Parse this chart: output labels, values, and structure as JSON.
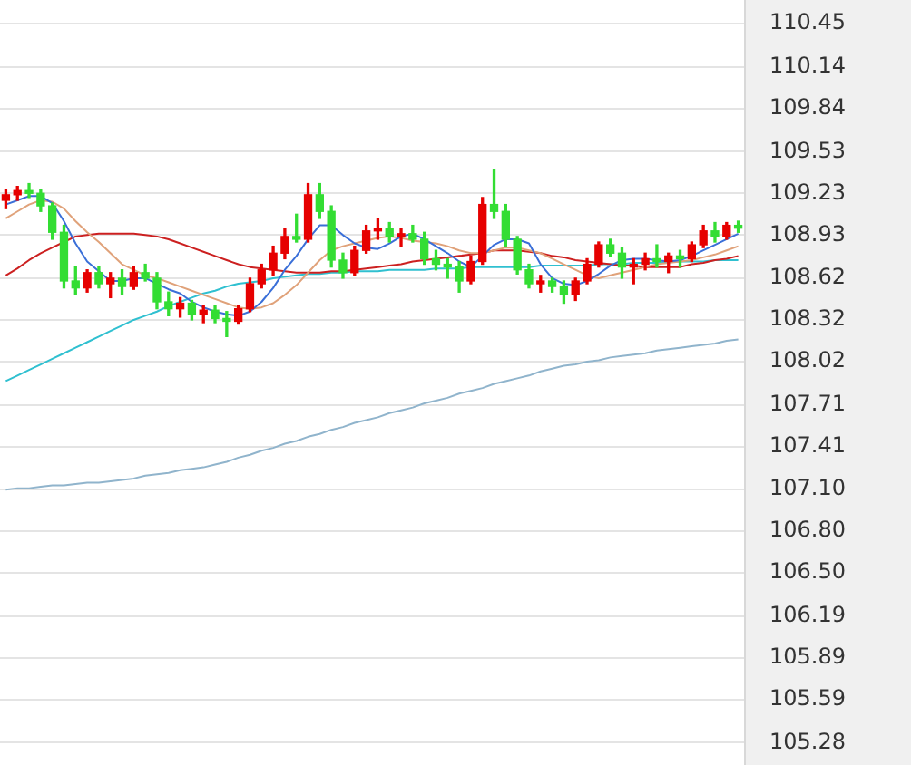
{
  "chart_data": {
    "type": "candlestick",
    "categories": [
      null,
      null,
      null,
      null,
      null,
      null,
      null,
      null,
      null,
      null,
      null,
      null,
      null,
      null,
      null,
      null,
      null,
      null,
      null,
      null,
      null,
      null,
      null,
      null,
      null,
      null,
      null,
      null,
      null,
      null,
      null,
      null,
      null,
      null,
      null,
      null,
      null,
      null,
      null,
      null,
      null,
      null,
      null,
      null,
      null,
      null,
      null,
      null,
      null,
      null,
      null,
      null,
      null,
      null,
      null,
      null,
      null,
      null,
      null,
      null,
      null,
      null,
      null,
      null
    ],
    "ohlc": [
      [
        109.18,
        109.26,
        109.12,
        109.22
      ],
      [
        109.22,
        109.28,
        109.18,
        109.25
      ],
      [
        109.25,
        109.3,
        109.2,
        109.23
      ],
      [
        109.23,
        109.26,
        109.1,
        109.14
      ],
      [
        109.14,
        109.16,
        108.9,
        108.95
      ],
      [
        108.95,
        109.0,
        108.55,
        108.6
      ],
      [
        108.6,
        108.7,
        108.5,
        108.55
      ],
      [
        108.55,
        108.68,
        108.52,
        108.66
      ],
      [
        108.66,
        108.7,
        108.55,
        108.58
      ],
      [
        108.58,
        108.66,
        108.48,
        108.62
      ],
      [
        108.62,
        108.68,
        108.5,
        108.56
      ],
      [
        108.56,
        108.7,
        108.54,
        108.66
      ],
      [
        108.66,
        108.72,
        108.6,
        108.62
      ],
      [
        108.62,
        108.66,
        108.4,
        108.45
      ],
      [
        108.45,
        108.52,
        108.35,
        108.4
      ],
      [
        108.4,
        108.48,
        108.34,
        108.44
      ],
      [
        108.44,
        108.46,
        108.32,
        108.36
      ],
      [
        108.36,
        108.42,
        108.3,
        108.39
      ],
      [
        108.39,
        108.42,
        108.3,
        108.33
      ],
      [
        108.33,
        108.38,
        108.2,
        108.31
      ],
      [
        108.31,
        108.42,
        108.29,
        108.4
      ],
      [
        108.4,
        108.62,
        108.38,
        108.58
      ],
      [
        108.58,
        108.72,
        108.55,
        108.68
      ],
      [
        108.68,
        108.85,
        108.64,
        108.8
      ],
      [
        108.8,
        108.98,
        108.76,
        108.92
      ],
      [
        108.92,
        109.08,
        108.88,
        108.9
      ],
      [
        108.9,
        109.3,
        108.88,
        109.22
      ],
      [
        109.22,
        109.3,
        109.05,
        109.1
      ],
      [
        109.1,
        109.14,
        108.7,
        108.75
      ],
      [
        108.75,
        108.8,
        108.62,
        108.66
      ],
      [
        108.66,
        108.85,
        108.64,
        108.82
      ],
      [
        108.82,
        109.0,
        108.8,
        108.96
      ],
      [
        108.96,
        109.05,
        108.9,
        108.98
      ],
      [
        108.98,
        109.02,
        108.88,
        108.92
      ],
      [
        108.92,
        108.98,
        108.85,
        108.94
      ],
      [
        108.94,
        109.0,
        108.88,
        108.9
      ],
      [
        108.9,
        108.95,
        108.72,
        108.76
      ],
      [
        108.76,
        108.82,
        108.68,
        108.72
      ],
      [
        108.72,
        108.76,
        108.62,
        108.7
      ],
      [
        108.7,
        108.74,
        108.52,
        108.6
      ],
      [
        108.6,
        108.78,
        108.58,
        108.74
      ],
      [
        108.74,
        109.2,
        108.72,
        109.15
      ],
      [
        109.15,
        109.4,
        109.05,
        109.1
      ],
      [
        109.1,
        109.15,
        108.85,
        108.9
      ],
      [
        108.9,
        108.92,
        108.65,
        108.68
      ],
      [
        108.68,
        108.72,
        108.55,
        108.58
      ],
      [
        108.58,
        108.64,
        108.52,
        108.6
      ],
      [
        108.6,
        108.62,
        108.52,
        108.56
      ],
      [
        108.56,
        108.6,
        108.44,
        108.5
      ],
      [
        108.5,
        108.62,
        108.46,
        108.6
      ],
      [
        108.6,
        108.76,
        108.58,
        108.72
      ],
      [
        108.72,
        108.88,
        108.7,
        108.86
      ],
      [
        108.86,
        108.9,
        108.78,
        108.8
      ],
      [
        108.8,
        108.84,
        108.62,
        108.7
      ],
      [
        108.7,
        108.76,
        108.58,
        108.72
      ],
      [
        108.72,
        108.8,
        108.68,
        108.76
      ],
      [
        108.76,
        108.86,
        108.7,
        108.74
      ],
      [
        108.74,
        108.8,
        108.66,
        108.78
      ],
      [
        108.78,
        108.82,
        108.7,
        108.76
      ],
      [
        108.76,
        108.88,
        108.74,
        108.86
      ],
      [
        108.86,
        109.0,
        108.84,
        108.96
      ],
      [
        108.96,
        109.02,
        108.88,
        108.92
      ],
      [
        108.92,
        109.02,
        108.9,
        109.0
      ],
      [
        109.0,
        109.03,
        108.95,
        108.98
      ]
    ],
    "colors": [
      "#e60000",
      "#e60000",
      "#33dd33",
      "#33dd33",
      "#33dd33",
      "#33dd33",
      "#33dd33",
      "#e60000",
      "#33dd33",
      "#e60000",
      "#33dd33",
      "#e60000",
      "#33dd33",
      "#33dd33",
      "#33dd33",
      "#e60000",
      "#33dd33",
      "#e60000",
      "#33dd33",
      "#33dd33",
      "#e60000",
      "#e60000",
      "#e60000",
      "#e60000",
      "#e60000",
      "#33dd33",
      "#e60000",
      "#33dd33",
      "#33dd33",
      "#33dd33",
      "#e60000",
      "#e60000",
      "#e60000",
      "#33dd33",
      "#e60000",
      "#33dd33",
      "#33dd33",
      "#33dd33",
      "#33dd33",
      "#33dd33",
      "#e60000",
      "#e60000",
      "#33dd33",
      "#33dd33",
      "#33dd33",
      "#33dd33",
      "#e60000",
      "#33dd33",
      "#33dd33",
      "#e60000",
      "#e60000",
      "#e60000",
      "#33dd33",
      "#33dd33",
      "#e60000",
      "#e60000",
      "#33dd33",
      "#e60000",
      "#33dd33",
      "#e60000",
      "#e60000",
      "#33dd33",
      "#e60000",
      "#33dd33"
    ],
    "series": [
      {
        "type": "line",
        "color": "#3a6fd8",
        "values": [
          109.15,
          109.18,
          109.21,
          109.21,
          109.16,
          109.03,
          108.87,
          108.74,
          108.67,
          108.6,
          108.6,
          108.62,
          108.62,
          108.58,
          108.54,
          108.51,
          108.45,
          108.41,
          108.38,
          108.36,
          108.35,
          108.38,
          108.45,
          108.55,
          108.68,
          108.78,
          108.9,
          109.0,
          109.0,
          108.93,
          108.87,
          108.84,
          108.83,
          108.87,
          108.92,
          108.94,
          108.9,
          108.85,
          108.8,
          108.74,
          108.7,
          108.78,
          108.86,
          108.9,
          108.9,
          108.87,
          108.72,
          108.62,
          108.58,
          108.57,
          108.6,
          108.65,
          108.71,
          108.75,
          108.76,
          108.76,
          108.75,
          108.74,
          108.75,
          108.78,
          108.82,
          108.86,
          108.9,
          108.94
        ]
      },
      {
        "type": "line",
        "color": "#e0a27a",
        "values": [
          109.05,
          109.1,
          109.15,
          109.18,
          109.17,
          109.12,
          109.03,
          108.95,
          108.88,
          108.8,
          108.72,
          108.68,
          108.64,
          108.62,
          108.59,
          108.56,
          108.53,
          108.5,
          108.47,
          108.44,
          108.41,
          108.4,
          108.41,
          108.44,
          108.5,
          108.57,
          108.66,
          108.75,
          108.82,
          108.85,
          108.87,
          108.89,
          108.91,
          108.92,
          108.91,
          108.89,
          108.88,
          108.87,
          108.85,
          108.82,
          108.8,
          108.8,
          108.82,
          108.84,
          108.84,
          108.82,
          108.8,
          108.76,
          108.72,
          108.68,
          108.64,
          108.62,
          108.64,
          108.66,
          108.68,
          108.7,
          108.72,
          108.73,
          108.74,
          108.75,
          108.77,
          108.79,
          108.82,
          108.85
        ]
      },
      {
        "type": "line",
        "color": "#cc2020",
        "values": [
          108.64,
          108.69,
          108.75,
          108.8,
          108.84,
          108.88,
          108.92,
          108.93,
          108.94,
          108.94,
          108.94,
          108.94,
          108.93,
          108.92,
          108.9,
          108.87,
          108.84,
          108.81,
          108.78,
          108.75,
          108.72,
          108.7,
          108.69,
          108.68,
          108.67,
          108.66,
          108.66,
          108.66,
          108.67,
          108.67,
          108.68,
          108.69,
          108.7,
          108.71,
          108.72,
          108.74,
          108.75,
          108.76,
          108.77,
          108.78,
          108.79,
          108.8,
          108.82,
          108.82,
          108.82,
          108.81,
          108.8,
          108.78,
          108.77,
          108.75,
          108.74,
          108.73,
          108.72,
          108.71,
          108.71,
          108.7,
          108.7,
          108.7,
          108.7,
          108.72,
          108.73,
          108.75,
          108.76,
          108.78
        ]
      },
      {
        "type": "line",
        "color": "#30c0d0",
        "values": [
          107.88,
          107.92,
          107.96,
          108.0,
          108.04,
          108.08,
          108.12,
          108.16,
          108.2,
          108.24,
          108.28,
          108.32,
          108.35,
          108.38,
          108.42,
          108.45,
          108.48,
          108.51,
          108.53,
          108.56,
          108.58,
          108.59,
          108.6,
          108.62,
          108.63,
          108.64,
          108.65,
          108.65,
          108.66,
          108.66,
          108.67,
          108.67,
          108.67,
          108.68,
          108.68,
          108.68,
          108.68,
          108.69,
          108.69,
          108.69,
          108.7,
          108.7,
          108.7,
          108.7,
          108.7,
          108.7,
          108.71,
          108.71,
          108.71,
          108.71,
          108.71,
          108.72,
          108.72,
          108.72,
          108.73,
          108.73,
          108.73,
          108.74,
          108.74,
          108.74,
          108.74,
          108.75,
          108.75,
          108.75
        ]
      },
      {
        "type": "line",
        "color": "#90b4cc",
        "values": [
          107.1,
          107.11,
          107.11,
          107.12,
          107.13,
          107.13,
          107.14,
          107.15,
          107.15,
          107.16,
          107.17,
          107.18,
          107.2,
          107.21,
          107.22,
          107.24,
          107.25,
          107.26,
          107.28,
          107.3,
          107.33,
          107.35,
          107.38,
          107.4,
          107.43,
          107.45,
          107.48,
          107.5,
          107.53,
          107.55,
          107.58,
          107.6,
          107.62,
          107.65,
          107.67,
          107.69,
          107.72,
          107.74,
          107.76,
          107.79,
          107.81,
          107.83,
          107.86,
          107.88,
          107.9,
          107.92,
          107.95,
          107.97,
          107.99,
          108.0,
          108.02,
          108.03,
          108.05,
          108.06,
          108.07,
          108.08,
          108.1,
          108.11,
          108.12,
          108.13,
          108.14,
          108.15,
          108.17,
          108.18
        ]
      }
    ],
    "ylim": [
      105.12,
      110.62
    ],
    "yticks": [
      110.45,
      110.14,
      109.84,
      109.53,
      109.23,
      108.93,
      108.62,
      108.32,
      108.02,
      107.71,
      107.41,
      {
        "value": 107.1,
        "label": "107.10"
      },
      {
        "value": 106.8,
        "label": "106.80"
      },
      {
        "value": 106.5,
        "label": "106.50"
      },
      106.19,
      105.89,
      105.59,
      105.28
    ],
    "grid": "y",
    "tick_labels": "y",
    "marker": "none",
    "line_style": "solid"
  }
}
